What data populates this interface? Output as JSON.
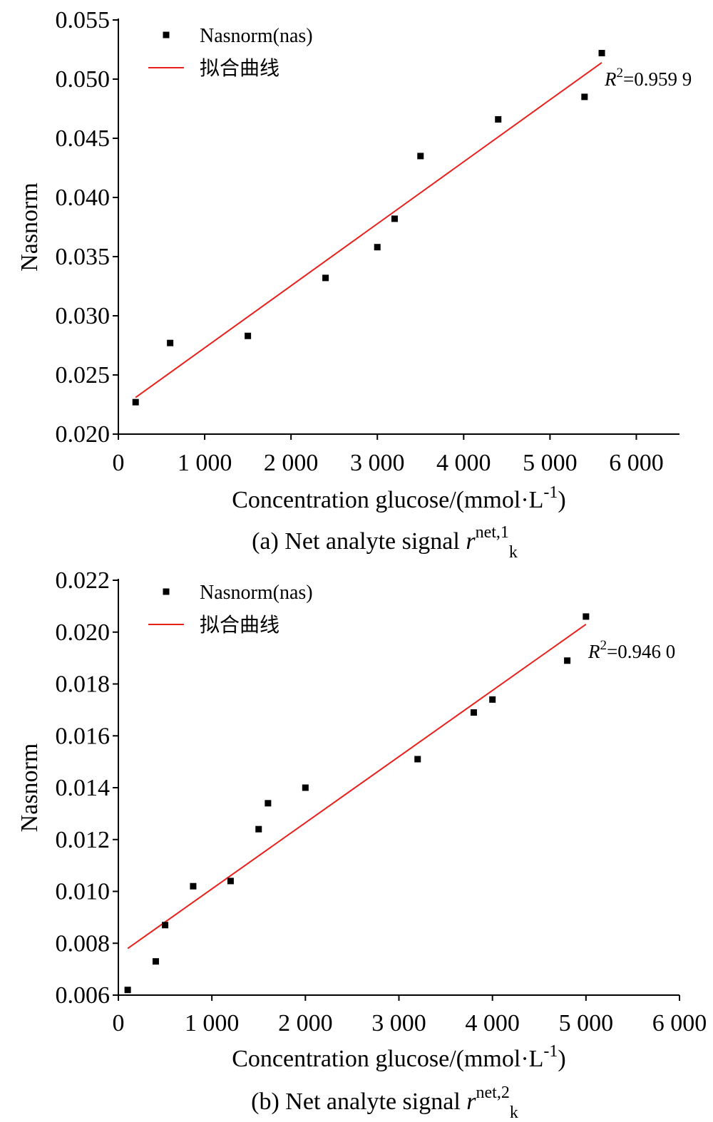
{
  "chart_data": [
    {
      "type": "scatter",
      "ylabel": "Nasnorm",
      "xlabel": "Concentration glucose/(mmol·L",
      "xlabel_sup": "-1",
      "xlabel_end": ")",
      "caption_main": "(a) Net analyte signal ",
      "caption_var": "r",
      "caption_sup": "net,1",
      "caption_sub": "k",
      "xlim": [
        0,
        6500
      ],
      "ylim": [
        0.02,
        0.055
      ],
      "xticks": [
        0,
        1000,
        2000,
        3000,
        4000,
        5000,
        6000
      ],
      "xtick_labels": [
        "0",
        "1 000",
        "2 000",
        "3 000",
        "4 000",
        "5 000",
        "6 000"
      ],
      "yticks": [
        0.02,
        0.025,
        0.03,
        0.035,
        0.04,
        0.045,
        0.05,
        0.055
      ],
      "ytick_labels": [
        "0.020",
        "0.025",
        "0.030",
        "0.035",
        "0.040",
        "0.045",
        "0.050",
        "0.055"
      ],
      "legend": {
        "position": "top-left",
        "scatter_label": "Nasnorm(nas)",
        "line_label": "拟合曲线"
      },
      "colors": {
        "points": "#000000",
        "fit": "#e8201c"
      },
      "series": [
        {
          "name": "Nasnorm(nas)",
          "x": [
            200,
            600,
            1500,
            2400,
            3000,
            3200,
            3500,
            4400,
            5400,
            5600
          ],
          "y": [
            0.0227,
            0.0277,
            0.0283,
            0.0332,
            0.0358,
            0.0382,
            0.0435,
            0.0466,
            0.0485,
            0.0522
          ]
        },
        {
          "name": "拟合曲线",
          "x": [
            200,
            5600
          ],
          "y": [
            0.0231,
            0.0514
          ]
        }
      ],
      "r2_label": "R",
      "r2_sup": "2",
      "r2_value": "=0.959 9"
    },
    {
      "type": "scatter",
      "ylabel": "Nasnorm",
      "xlabel": "Concentration glucose/(mmol·L",
      "xlabel_sup": "-1",
      "xlabel_end": ")",
      "caption_main": "(b) Net analyte signal ",
      "caption_var": "r",
      "caption_sup": "net,2",
      "caption_sub": "k",
      "xlim": [
        0,
        6000
      ],
      "ylim": [
        0.006,
        0.022
      ],
      "xticks": [
        0,
        1000,
        2000,
        3000,
        4000,
        5000,
        6000
      ],
      "xtick_labels": [
        "0",
        "1 000",
        "2 000",
        "3 000",
        "4 000",
        "5 000",
        "6 000"
      ],
      "yticks": [
        0.006,
        0.008,
        0.01,
        0.012,
        0.014,
        0.016,
        0.018,
        0.02,
        0.022
      ],
      "ytick_labels": [
        "0.006",
        "0.008",
        "0.010",
        "0.012",
        "0.014",
        "0.016",
        "0.018",
        "0.020",
        "0.022"
      ],
      "legend": {
        "position": "top-left",
        "scatter_label": "Nasnorm(nas)",
        "line_label": "拟合曲线"
      },
      "colors": {
        "points": "#000000",
        "fit": "#e8201c"
      },
      "series": [
        {
          "name": "Nasnorm(nas)",
          "x": [
            100,
            400,
            500,
            800,
            1200,
            1500,
            1600,
            2000,
            3200,
            3800,
            4000,
            4800,
            5000
          ],
          "y": [
            0.0062,
            0.0073,
            0.0087,
            0.0102,
            0.0104,
            0.0124,
            0.0134,
            0.014,
            0.0151,
            0.0169,
            0.0174,
            0.0189,
            0.0206
          ]
        },
        {
          "name": "拟合曲线",
          "x": [
            100,
            5000
          ],
          "y": [
            0.0078,
            0.0203
          ]
        }
      ],
      "r2_label": "R",
      "r2_sup": "2",
      "r2_value": "=0.946 0"
    }
  ]
}
